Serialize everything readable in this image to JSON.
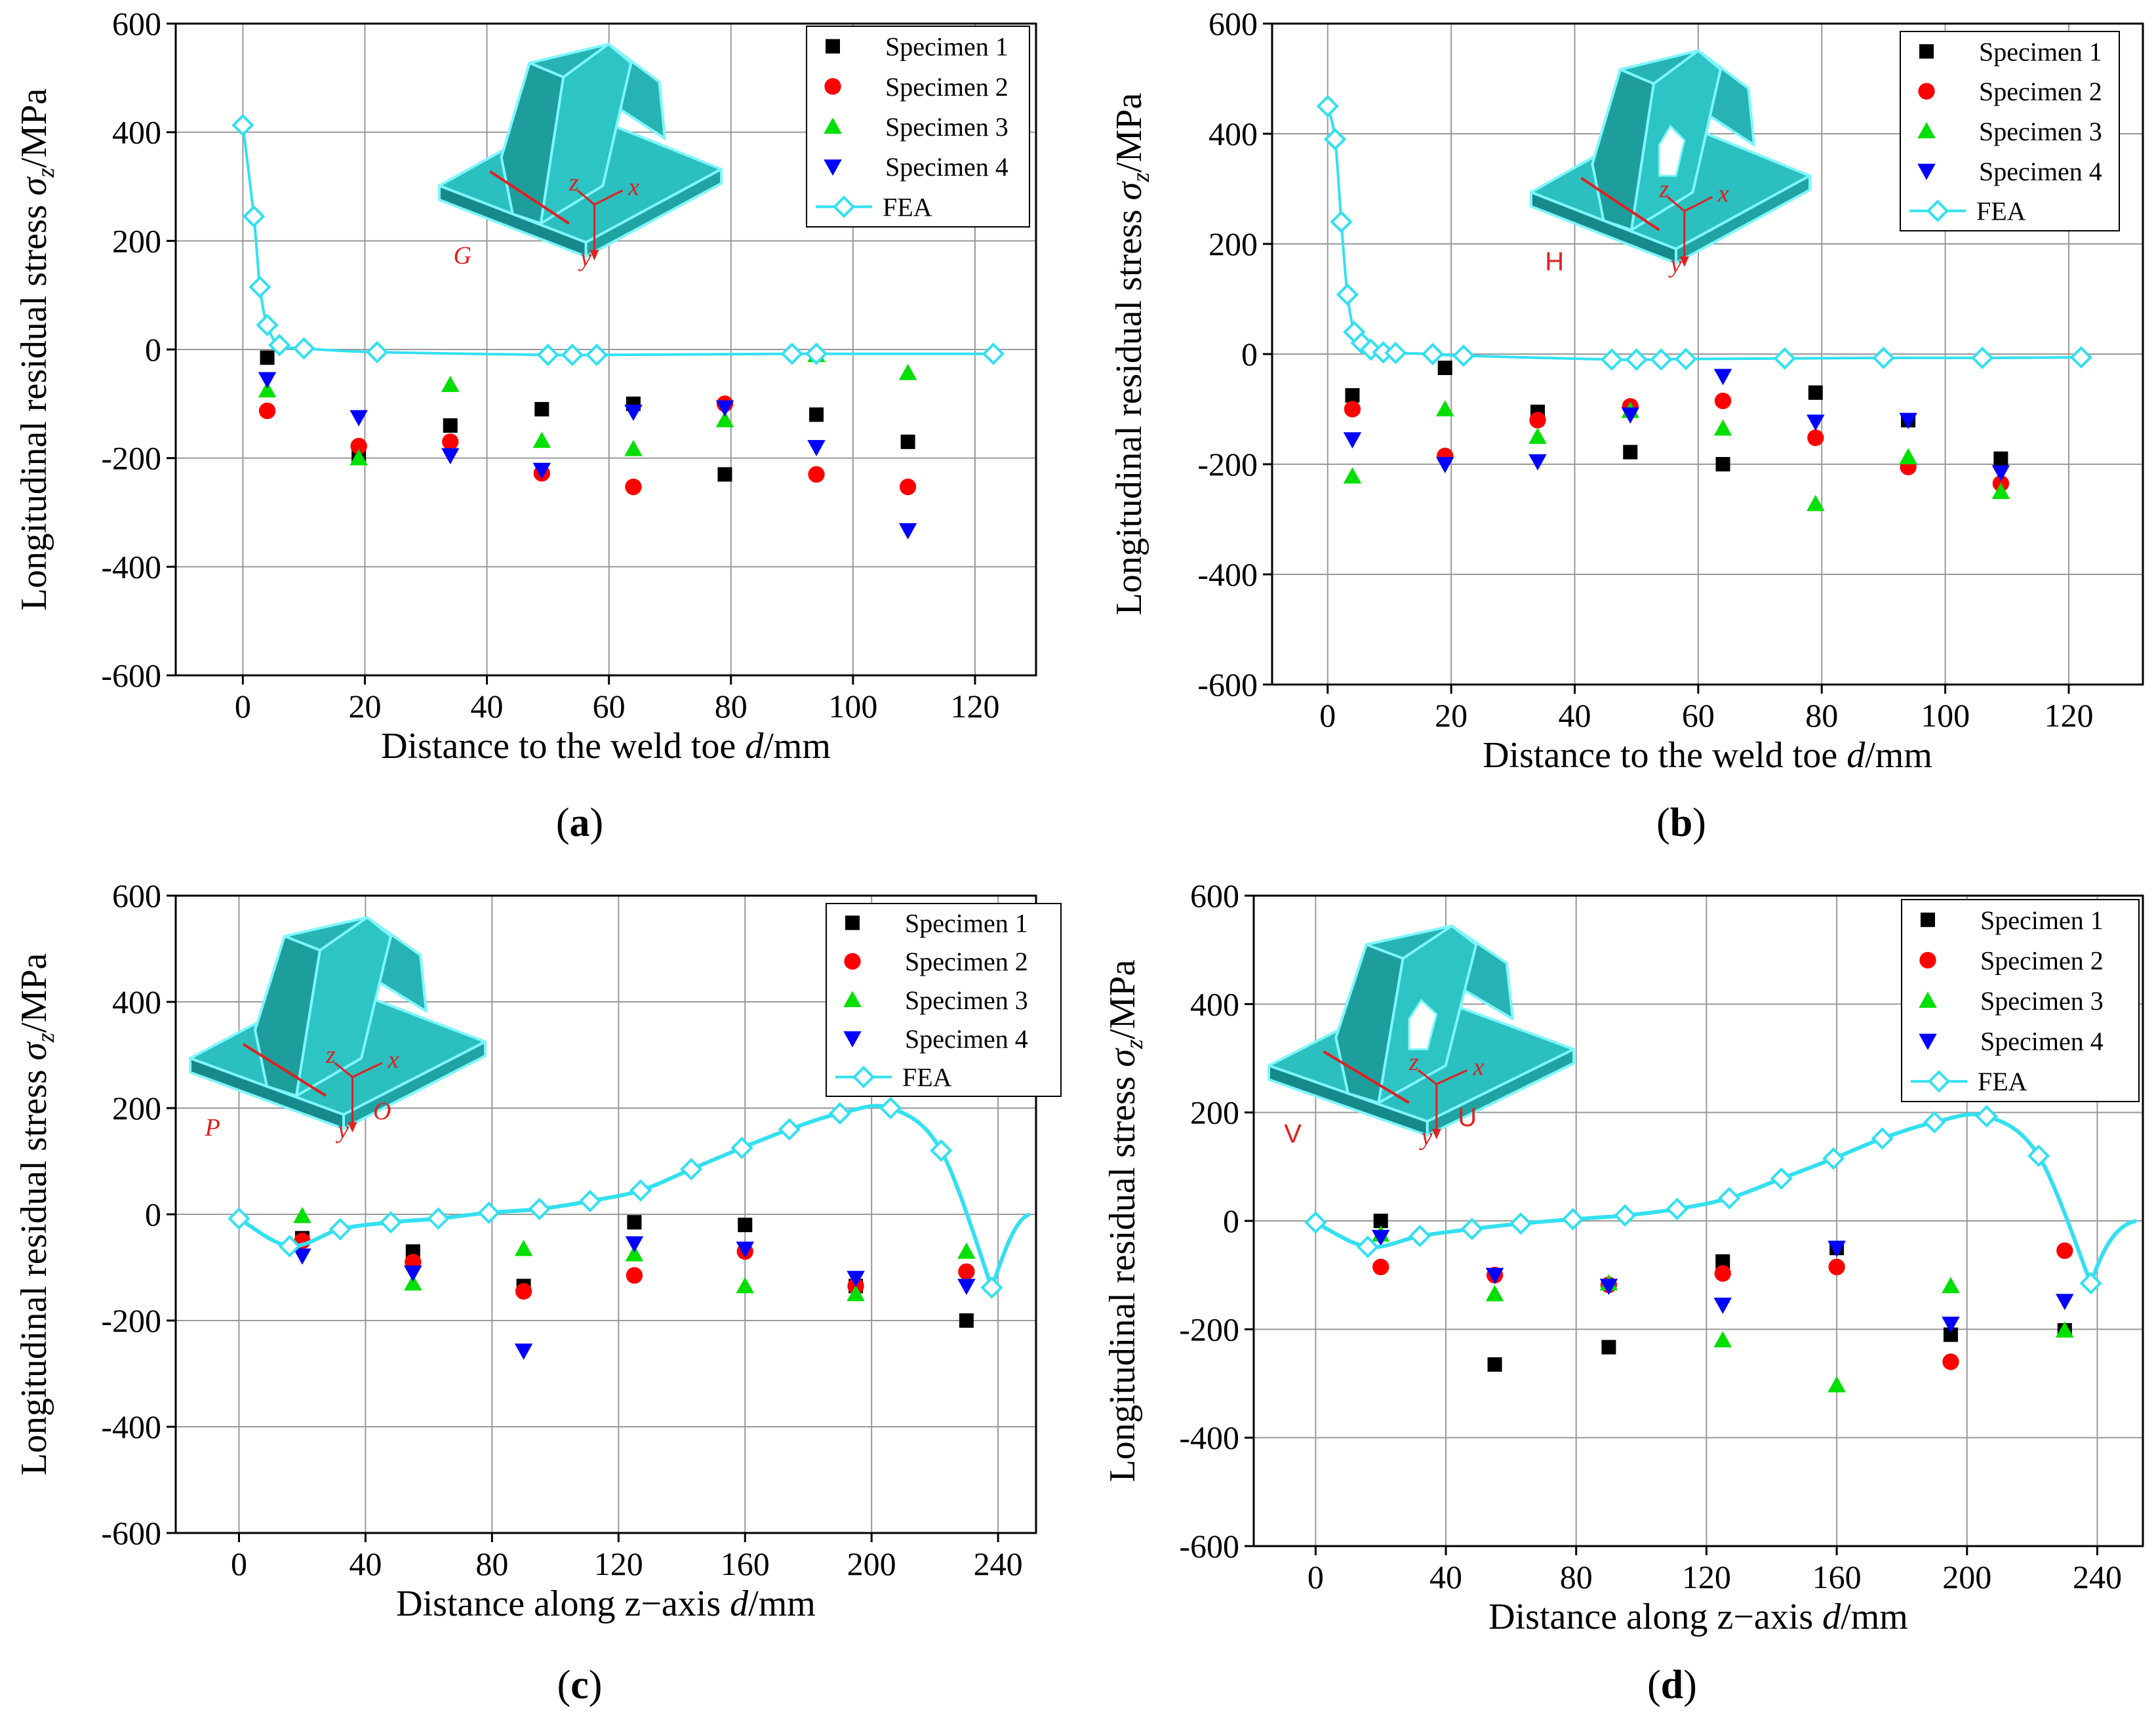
{
  "colors": {
    "spec1": "#000000",
    "spec2": "#ff0000",
    "spec3": "#00e000",
    "spec4": "#0000ff",
    "fea": "#33e0f0",
    "grid": "#999999",
    "inset": "#2bbfbf",
    "inset_dark": "#168a8a",
    "label": "#e0201e"
  },
  "chart_data": [
    {
      "type": "scatter",
      "caption": "(a)",
      "xlabel": "Distance to the weld toe d/mm",
      "ylabel": "Longitudinal residual stress σz/MPa",
      "xlim": [
        -11,
        130
      ],
      "ylim": [
        -600,
        600
      ],
      "xticks": [
        0,
        20,
        40,
        60,
        80,
        100,
        120
      ],
      "yticks": [
        -600,
        -400,
        -200,
        0,
        200,
        400,
        600
      ],
      "inset_labels": [
        "G",
        "z",
        "x",
        "y"
      ],
      "legend": [
        "Specimen 1",
        "Specimen 2",
        "Specimen 3",
        "Specimen 4",
        "FEA"
      ],
      "series": [
        {
          "name": "Specimen 1",
          "marker": "square",
          "x": [
            4,
            19,
            34,
            49,
            64,
            79,
            94,
            109
          ],
          "y": [
            -15,
            -195,
            -140,
            -110,
            -100,
            -230,
            -120,
            -170
          ]
        },
        {
          "name": "Specimen 2",
          "marker": "circle",
          "x": [
            4,
            19,
            34,
            49,
            64,
            79,
            94,
            109
          ],
          "y": [
            -113,
            -178,
            -170,
            -228,
            -253,
            -100,
            -230,
            -253
          ]
        },
        {
          "name": "Specimen 3",
          "marker": "triangle-up",
          "x": [
            4,
            19,
            34,
            49,
            64,
            79,
            94,
            109
          ],
          "y": [
            -75,
            -200,
            -65,
            -168,
            -183,
            -130,
            -10,
            -43
          ]
        },
        {
          "name": "Specimen 4",
          "marker": "triangle-down",
          "x": [
            4,
            19,
            34,
            49,
            64,
            79,
            94,
            109
          ],
          "y": [
            -55,
            -125,
            -195,
            -222,
            -115,
            -107,
            -180,
            -333
          ]
        },
        {
          "name": "FEA",
          "marker": "diamond",
          "x": [
            0,
            1.8,
            2.8,
            4,
            6,
            10,
            22,
            50,
            54,
            58,
            90,
            94,
            123
          ],
          "y": [
            413,
            245,
            115,
            45,
            8,
            2,
            -5,
            -10,
            -10,
            -10,
            -8,
            -8,
            -8
          ]
        }
      ]
    },
    {
      "type": "scatter",
      "caption": "(b)",
      "xlabel": "Distance to the weld toe d/mm",
      "ylabel": "Longitudinal residual stress σz/MPa",
      "xlim": [
        -9,
        132
      ],
      "ylim": [
        -600,
        600
      ],
      "xticks": [
        0,
        20,
        40,
        60,
        80,
        100,
        120
      ],
      "yticks": [
        -600,
        -400,
        -200,
        0,
        200,
        400,
        600
      ],
      "inset_labels": [
        "H",
        "z",
        "x",
        "y"
      ],
      "legend": [
        "Specimen 1",
        "Specimen 2",
        "Specimen 3",
        "Specimen 4",
        "FEA"
      ],
      "series": [
        {
          "name": "Specimen 1",
          "marker": "square",
          "x": [
            4,
            19,
            34,
            49,
            64,
            79,
            94,
            109
          ],
          "y": [
            -75,
            -25,
            -105,
            -178,
            -200,
            -70,
            -120,
            -190
          ]
        },
        {
          "name": "Specimen 2",
          "marker": "circle",
          "x": [
            4,
            19,
            34,
            49,
            64,
            79,
            94,
            109
          ],
          "y": [
            -100,
            -185,
            -120,
            -95,
            -85,
            -152,
            -205,
            -235
          ]
        },
        {
          "name": "Specimen 3",
          "marker": "triangle-up",
          "x": [
            4,
            19,
            34,
            49,
            64,
            79,
            94,
            109
          ],
          "y": [
            -222,
            -100,
            -150,
            -103,
            -135,
            -272,
            -187,
            -250
          ]
        },
        {
          "name": "Specimen 4",
          "marker": "triangle-down",
          "x": [
            4,
            19,
            34,
            49,
            64,
            79,
            94,
            109
          ],
          "y": [
            -155,
            -200,
            -195,
            -110,
            -40,
            -123,
            -120,
            -215
          ]
        },
        {
          "name": "FEA",
          "marker": "diamond",
          "x": [
            0,
            1.2,
            2.2,
            3.2,
            4.3,
            5.5,
            7,
            9,
            11,
            17,
            22,
            46,
            50,
            54,
            58,
            74,
            90,
            106,
            122
          ],
          "y": [
            450,
            390,
            240,
            108,
            40,
            20,
            8,
            3,
            2,
            0,
            -3,
            -10,
            -10,
            -10,
            -9,
            -8,
            -7,
            -7,
            -6
          ]
        }
      ]
    },
    {
      "type": "scatter",
      "caption": "(c)",
      "xlabel": "Distance along z−axis d/mm",
      "ylabel": "Longitudinal residual stress σz/MPa",
      "xlim": [
        -20,
        252
      ],
      "ylim": [
        -600,
        600
      ],
      "xticks": [
        0,
        40,
        80,
        120,
        160,
        200,
        240
      ],
      "yticks": [
        -600,
        -400,
        -200,
        0,
        200,
        400,
        600
      ],
      "inset_labels": [
        "P",
        "O",
        "z",
        "x",
        "y"
      ],
      "legend": [
        "Specimen 1",
        "Specimen 2",
        "Specimen 3",
        "Specimen 4",
        "FEA"
      ],
      "series": [
        {
          "name": "Specimen 1",
          "marker": "square",
          "x": [
            20,
            55,
            90,
            125,
            160,
            195,
            230
          ],
          "y": [
            -45,
            -70,
            -135,
            -15,
            -20,
            -135,
            -200
          ]
        },
        {
          "name": "Specimen 2",
          "marker": "circle",
          "x": [
            20,
            55,
            90,
            125,
            160,
            195,
            230
          ],
          "y": [
            -50,
            -90,
            -145,
            -115,
            -70,
            -135,
            -108
          ]
        },
        {
          "name": "Specimen 3",
          "marker": "triangle-up",
          "x": [
            20,
            55,
            90,
            125,
            160,
            195,
            230
          ],
          "y": [
            -3,
            -130,
            -65,
            -75,
            -135,
            -150,
            -70
          ]
        },
        {
          "name": "Specimen 4",
          "marker": "triangle-down",
          "x": [
            20,
            55,
            90,
            125,
            160,
            195,
            230
          ],
          "y": [
            -78,
            -110,
            -257,
            -55,
            -65,
            -120,
            -135
          ]
        },
        {
          "name": "FEA",
          "marker": "diamond",
          "x": [
            0,
            16,
            32,
            48,
            63,
            79,
            95,
            111,
            127,
            143,
            159,
            174,
            190,
            206,
            222,
            238
          ],
          "y": [
            -8,
            -60,
            -28,
            -15,
            -8,
            3,
            10,
            25,
            45,
            85,
            125,
            160,
            190,
            200,
            120,
            -138
          ]
        }
      ]
    },
    {
      "type": "scatter",
      "caption": "(d)",
      "xlabel": "Distance along z−axis d/mm",
      "ylabel": "Longitudinal residual stress σz/MPa",
      "xlim": [
        -19,
        254
      ],
      "ylim": [
        -600,
        600
      ],
      "xticks": [
        0,
        40,
        80,
        120,
        160,
        200,
        240
      ],
      "yticks": [
        -600,
        -400,
        -200,
        0,
        200,
        400,
        600
      ],
      "inset_labels": [
        "V",
        "U",
        "z",
        "x",
        "y"
      ],
      "legend": [
        "Specimen 1",
        "Specimen 2",
        "Specimen 3",
        "Specimen 4",
        "FEA"
      ],
      "series": [
        {
          "name": "Specimen 1",
          "marker": "square",
          "x": [
            20,
            55,
            90,
            125,
            160,
            195,
            230
          ],
          "y": [
            0,
            -265,
            -233,
            -75,
            -50,
            -210,
            -202
          ]
        },
        {
          "name": "Specimen 2",
          "marker": "circle",
          "x": [
            20,
            55,
            90,
            125,
            160,
            195,
            230
          ],
          "y": [
            -85,
            -100,
            -118,
            -97,
            -85,
            -260,
            -55
          ]
        },
        {
          "name": "Specimen 3",
          "marker": "triangle-up",
          "x": [
            20,
            55,
            90,
            125,
            160,
            195,
            230
          ],
          "y": [
            -25,
            -135,
            -115,
            -220,
            -303,
            -120,
            -202
          ]
        },
        {
          "name": "Specimen 4",
          "marker": "triangle-down",
          "x": [
            20,
            55,
            90,
            125,
            160,
            195,
            230
          ],
          "y": [
            -30,
            -100,
            -120,
            -155,
            -50,
            -190,
            -148
          ]
        },
        {
          "name": "FEA",
          "marker": "diamond",
          "x": [
            0,
            16,
            32,
            48,
            63,
            79,
            95,
            111,
            127,
            143,
            159,
            174,
            190,
            206,
            222,
            238
          ],
          "y": [
            -3,
            -48,
            -28,
            -15,
            -5,
            3,
            10,
            22,
            42,
            78,
            115,
            152,
            182,
            193,
            120,
            -115
          ]
        }
      ]
    }
  ]
}
